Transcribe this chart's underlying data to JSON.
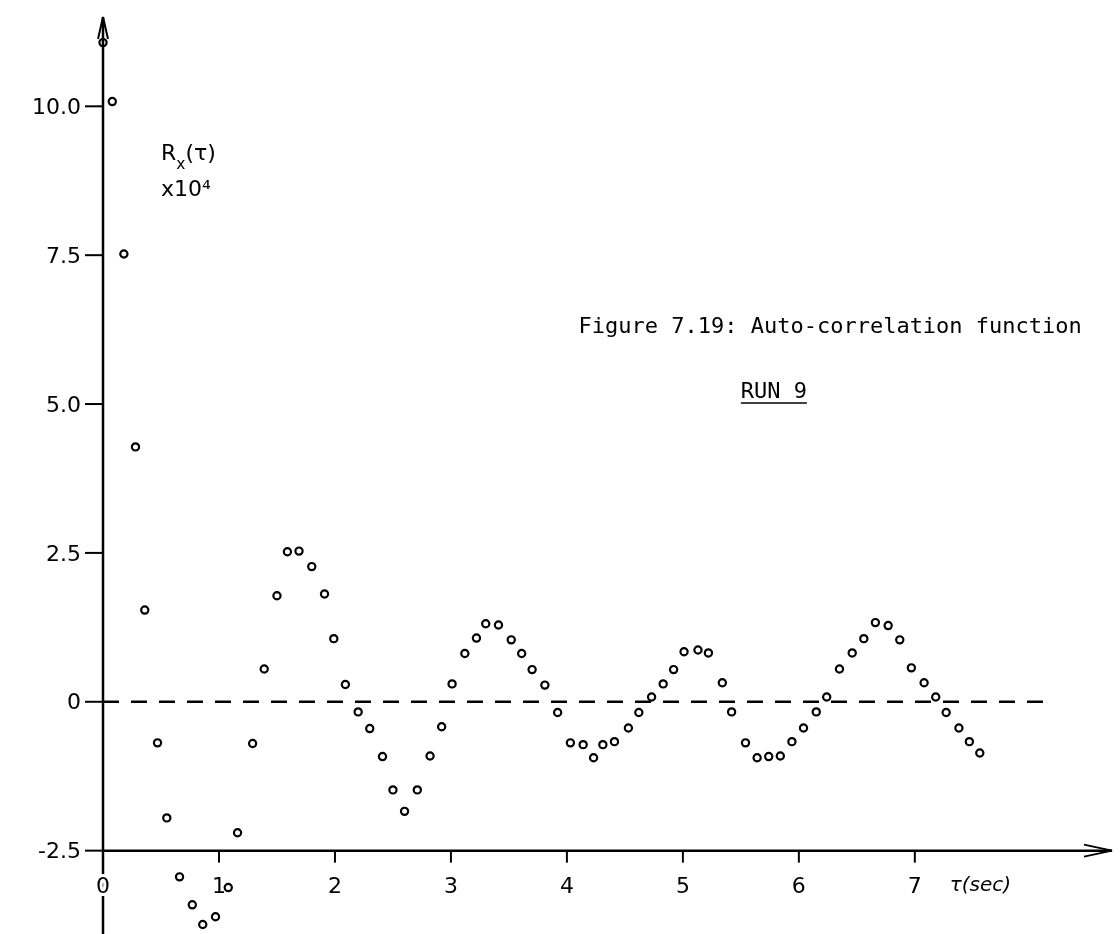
{
  "chart_data": {
    "type": "scatter",
    "title": "Figure 7.19:  Auto-correlation function",
    "subtitle": "RUN 9",
    "xlabel": "τ(sec)",
    "ylabel": "R$_{x}$(τ) x10⁴",
    "xlim": [
      0,
      8.7
    ],
    "ylim": [
      -3.9,
      11.5
    ],
    "xticks": [
      0,
      1,
      2,
      3,
      4,
      5,
      6,
      7
    ],
    "yticks": [
      {
        "value": -2.5,
        "label": "-2.5"
      },
      0,
      2.5,
      {
        "value": 5,
        "label": "5.0"
      },
      7.5,
      {
        "value": 10,
        "label": "10.0"
      }
    ],
    "marker": "circle",
    "ref_lines": [
      {
        "axis": "y",
        "value": 0,
        "color": "#000000",
        "line_style": "dashed"
      }
    ],
    "series": [
      {
        "color": "#000000",
        "x": [
          0,
          0.08,
          0.18,
          0.28,
          0.36,
          0.47,
          0.55,
          0.66,
          0.77,
          0.86,
          0.97,
          1.08,
          1.16,
          1.29,
          1.39,
          1.5,
          1.59,
          1.69,
          1.8,
          1.91,
          1.99,
          2.09,
          2.2,
          2.3,
          2.41,
          2.5,
          2.6,
          2.71,
          2.82,
          2.92,
          3.01,
          3.12,
          3.22,
          3.3,
          3.41,
          3.52,
          3.61,
          3.7,
          3.81,
          3.92,
          4.03,
          4.14,
          4.23,
          4.31,
          4.41,
          4.53,
          4.62,
          4.73,
          4.83,
          4.92,
          5.01,
          5.13,
          5.22,
          5.34,
          5.42,
          5.54,
          5.64,
          5.74,
          5.84,
          5.94,
          6.04,
          6.15,
          6.24,
          6.35,
          6.46,
          6.56,
          6.66,
          6.77,
          6.87,
          6.97,
          7.08,
          7.18,
          7.27,
          7.38,
          7.47,
          7.56
        ],
        "values": [
          11.07,
          10.08,
          7.52,
          4.28,
          1.54,
          -0.69,
          -1.95,
          -2.94,
          -3.41,
          -3.74,
          -3.61,
          -3.12,
          -2.2,
          -0.7,
          0.55,
          1.78,
          2.52,
          2.53,
          2.27,
          1.81,
          1.06,
          0.29,
          -0.17,
          -0.45,
          -0.92,
          -1.48,
          -1.84,
          -1.48,
          -0.91,
          -0.42,
          0.3,
          0.81,
          1.07,
          1.31,
          1.29,
          1.04,
          0.81,
          0.54,
          0.28,
          -0.18,
          -0.69,
          -0.72,
          -0.94,
          -0.72,
          -0.67,
          -0.44,
          -0.18,
          0.08,
          0.3,
          0.54,
          0.84,
          0.87,
          0.82,
          0.32,
          -0.17,
          -0.69,
          -0.94,
          -0.92,
          -0.91,
          -0.67,
          -0.44,
          -0.17,
          0.08,
          0.55,
          0.82,
          1.06,
          1.33,
          1.28,
          1.04,
          0.57,
          0.32,
          0.08,
          -0.18,
          -0.44,
          -0.67,
          -0.86
        ]
      }
    ]
  }
}
